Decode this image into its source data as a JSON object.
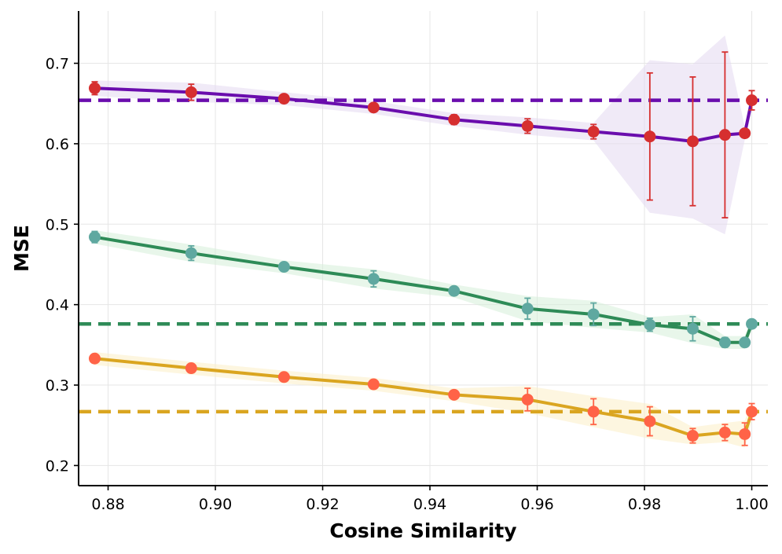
{
  "chart_data": {
    "type": "line",
    "title": "",
    "xlabel": "Cosine Similarity",
    "ylabel": "MSE",
    "xlim": [
      0.8745,
      1.003
    ],
    "ylim": [
      0.175,
      0.765
    ],
    "xticks": [
      0.88,
      0.9,
      0.92,
      0.94,
      0.96,
      0.98,
      1.0
    ],
    "xtick_labels": [
      "0.88",
      "0.90",
      "0.92",
      "0.94",
      "0.96",
      "0.98",
      "1.00"
    ],
    "yticks": [
      0.2,
      0.3,
      0.4,
      0.5,
      0.6,
      0.7
    ],
    "ytick_labels": [
      "0.2",
      "0.3",
      "0.4",
      "0.5",
      "0.6",
      "0.7"
    ],
    "grid": true,
    "x": [
      0.8775,
      0.8955,
      0.9128,
      0.9295,
      0.9445,
      0.9582,
      0.9705,
      0.981,
      0.989,
      0.995,
      0.9987,
      1.0
    ],
    "series": [
      {
        "name": "purple",
        "line_color": "#6a0dad",
        "marker_color": "#d62f2f",
        "band_color": "#e4d8f0",
        "baseline": 0.654,
        "values": [
          0.669,
          0.664,
          0.656,
          0.645,
          0.63,
          0.622,
          0.615,
          0.609,
          0.603,
          0.611,
          0.613,
          0.654
        ],
        "errors": [
          0.008,
          0.01,
          0.004,
          0.005,
          0.006,
          0.009,
          0.009,
          0.079,
          0.08,
          0.103,
          0.004,
          0.012
        ]
      },
      {
        "name": "green",
        "line_color": "#2e8b57",
        "marker_color": "#5fa8a0",
        "band_color": "#d6eed8",
        "baseline": 0.376,
        "values": [
          0.484,
          0.464,
          0.447,
          0.432,
          0.417,
          0.395,
          0.388,
          0.375,
          0.37,
          0.353,
          0.353,
          0.376
        ],
        "errors": [
          0.007,
          0.009,
          0.003,
          0.01,
          0.004,
          0.013,
          0.014,
          0.008,
          0.015,
          0.006,
          0.005,
          0.003
        ]
      },
      {
        "name": "gold",
        "line_color": "#daa520",
        "marker_color": "#ff6347",
        "band_color": "#fbefc6",
        "baseline": 0.267,
        "values": [
          0.333,
          0.321,
          0.31,
          0.301,
          0.288,
          0.282,
          0.267,
          0.255,
          0.237,
          0.241,
          0.239,
          0.267
        ],
        "errors": [
          0.003,
          0.003,
          0.003,
          0.003,
          0.003,
          0.014,
          0.016,
          0.018,
          0.009,
          0.01,
          0.014,
          0.01
        ]
      }
    ]
  }
}
